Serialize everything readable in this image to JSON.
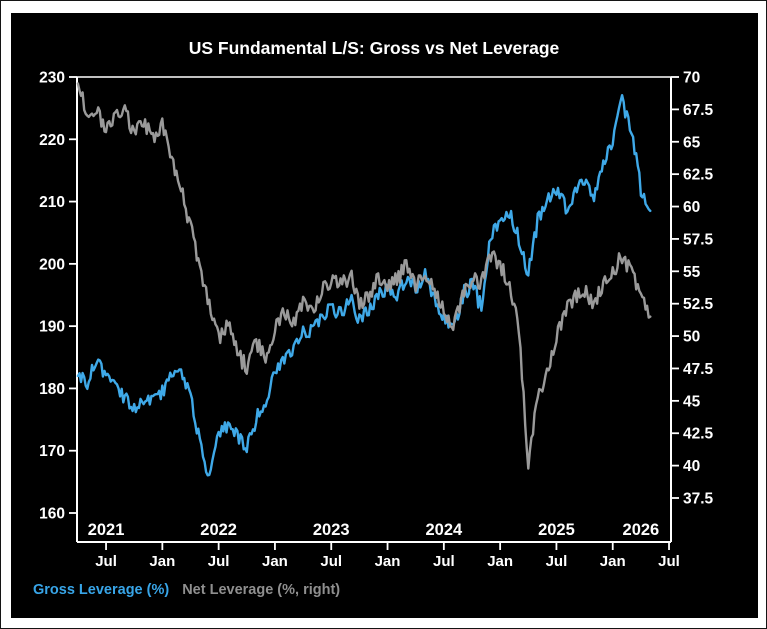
{
  "title": "US Fundamental L/S: Gross vs Net Leverage",
  "legend": [
    {
      "label": "Gross Leverage (%)",
      "color": "#38a5e8"
    },
    {
      "label": "Net Leverage (%, right)",
      "color": "#8f8f8f"
    }
  ],
  "colors": {
    "page_background": "#ffffff",
    "chart_background": "#000000",
    "axis": "#ffffff",
    "text": "#ffffff",
    "gross_line": "#3fa9e8",
    "net_line": "#9a9a9a"
  },
  "chart_data": {
    "type": "line",
    "title": "US Fundamental L/S: Gross vs Net Leverage",
    "grid": false,
    "legend_position": "bottom-left",
    "left_axis": {
      "label": "Gross Leverage (%)",
      "range": [
        160,
        230
      ],
      "ticks": [
        "230",
        "220",
        "210",
        "200",
        "190",
        "180",
        "170",
        "160"
      ]
    },
    "right_axis": {
      "label": "Net Leverage (%, right)",
      "range": [
        37.5,
        70
      ],
      "ticks": [
        "70",
        "67.5",
        "65",
        "62.5",
        "60",
        "57.5",
        "55",
        "52.5",
        "50",
        "47.5",
        "45",
        "42.5",
        "40",
        "37.5"
      ]
    },
    "x_axis": {
      "start": "2021-04",
      "end": "2026-05",
      "month_ticks": [
        {
          "m": 3,
          "label": "Jul"
        },
        {
          "m": 9,
          "label": "Jan"
        },
        {
          "m": 15,
          "label": "Jul"
        },
        {
          "m": 21,
          "label": "Jan"
        },
        {
          "m": 27,
          "label": "Jul"
        },
        {
          "m": 33,
          "label": "Jan"
        },
        {
          "m": 39,
          "label": "Jul"
        },
        {
          "m": 45,
          "label": "Jan"
        },
        {
          "m": 51,
          "label": "Jul"
        },
        {
          "m": 57,
          "label": "Jan"
        },
        {
          "m": 63,
          "label": "Jul"
        }
      ],
      "year_labels": [
        {
          "m": 3,
          "label": "2021"
        },
        {
          "m": 15,
          "label": "2022"
        },
        {
          "m": 27,
          "label": "2023"
        },
        {
          "m": 39,
          "label": "2024"
        },
        {
          "m": 51,
          "label": "2025"
        },
        {
          "m": 60,
          "label": "2026"
        }
      ]
    },
    "months": [
      "2021-04",
      "2021-05",
      "2021-06",
      "2021-07",
      "2021-08",
      "2021-09",
      "2021-10",
      "2021-11",
      "2021-12",
      "2022-01",
      "2022-02",
      "2022-03",
      "2022-04",
      "2022-05",
      "2022-06",
      "2022-07",
      "2022-08",
      "2022-09",
      "2022-10",
      "2022-11",
      "2022-12",
      "2023-01",
      "2023-02",
      "2023-03",
      "2023-04",
      "2023-05",
      "2023-06",
      "2023-07",
      "2023-08",
      "2023-09",
      "2023-10",
      "2023-11",
      "2023-12",
      "2024-01",
      "2024-02",
      "2024-03",
      "2024-04",
      "2024-05",
      "2024-06",
      "2024-07",
      "2024-08",
      "2024-09",
      "2024-10",
      "2024-11",
      "2024-12",
      "2025-01",
      "2025-02",
      "2025-03",
      "2025-04",
      "2025-05",
      "2025-06",
      "2025-07",
      "2025-08",
      "2025-09",
      "2025-10",
      "2025-11",
      "2025-12",
      "2026-01",
      "2026-02",
      "2026-03",
      "2026-04",
      "2026-05"
    ],
    "series": [
      {
        "name": "Gross Leverage (%)",
        "axis": "left",
        "color": "#3fa9e8",
        "jitter": 1.1,
        "values": [
          182,
          181,
          184.5,
          181.5,
          180,
          178.5,
          177,
          178.5,
          178,
          179.5,
          181.5,
          182.5,
          178.5,
          171.5,
          165.5,
          172.5,
          175,
          172.5,
          170.5,
          175.5,
          178,
          183,
          184.5,
          186.5,
          189.5,
          189,
          191.5,
          193,
          192,
          194.5,
          191,
          192.5,
          195,
          196,
          195,
          197.5,
          196,
          198.5,
          194,
          191.5,
          189.5,
          194.5,
          197,
          193.5,
          204.5,
          206.5,
          208.5,
          204,
          198.5,
          207,
          210.5,
          212,
          209,
          211.5,
          213.5,
          211,
          216,
          220,
          226.5,
          221.5,
          212,
          208.5
        ]
      },
      {
        "name": "Net Leverage (%, right)",
        "axis": "right",
        "color": "#9a9a9a",
        "jitter": 0.55,
        "values": [
          69.5,
          67.2,
          67.6,
          66.0,
          67.0,
          67.4,
          65.6,
          66.5,
          65.2,
          66.3,
          63.5,
          61.5,
          58.5,
          55.0,
          52.5,
          49.8,
          51.0,
          49.0,
          47.5,
          49.5,
          48.5,
          50.5,
          52.0,
          51.0,
          52.5,
          52.0,
          53.5,
          54.3,
          54.0,
          55.0,
          52.5,
          53.0,
          54.5,
          54.0,
          54.5,
          55.5,
          54.0,
          55.0,
          53.5,
          52.0,
          50.8,
          53.0,
          54.5,
          54.0,
          56.3,
          55.5,
          54.0,
          50.5,
          40.0,
          45.5,
          47.0,
          50.0,
          52.0,
          53.0,
          53.5,
          52.5,
          54.0,
          55.0,
          56.0,
          55.0,
          53.0,
          51.5
        ]
      }
    ]
  }
}
